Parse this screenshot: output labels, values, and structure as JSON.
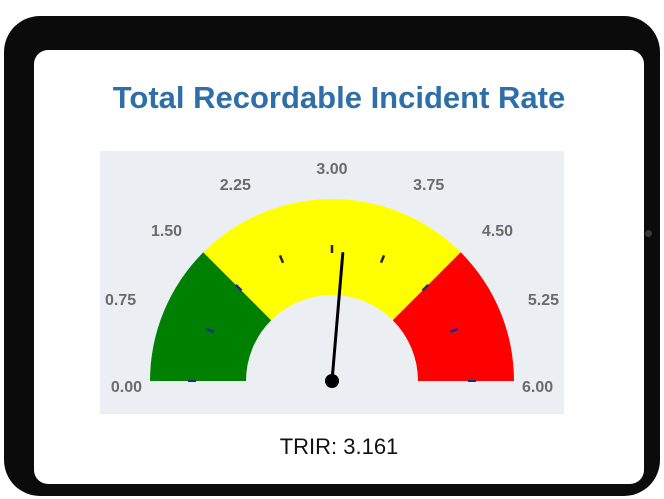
{
  "chart_data": {
    "type": "gauge",
    "title": "Total Recordable Incident Rate",
    "min": 0,
    "max": 6,
    "value": 3.161,
    "ticks": [
      "0.00",
      "0.75",
      "1.50",
      "2.25",
      "3.00",
      "3.75",
      "4.50",
      "5.25",
      "6.00"
    ],
    "tick_values": [
      0,
      0.75,
      1.5,
      2.25,
      3,
      3.75,
      4.5,
      5.25,
      6
    ],
    "bands": [
      {
        "from": 0,
        "to": 1.5,
        "color": "#008000"
      },
      {
        "from": 1.5,
        "to": 4.5,
        "color": "#ffff00"
      },
      {
        "from": 4.5,
        "to": 6,
        "color": "#ff0000"
      }
    ],
    "readout": "TRIR: 3.161"
  }
}
